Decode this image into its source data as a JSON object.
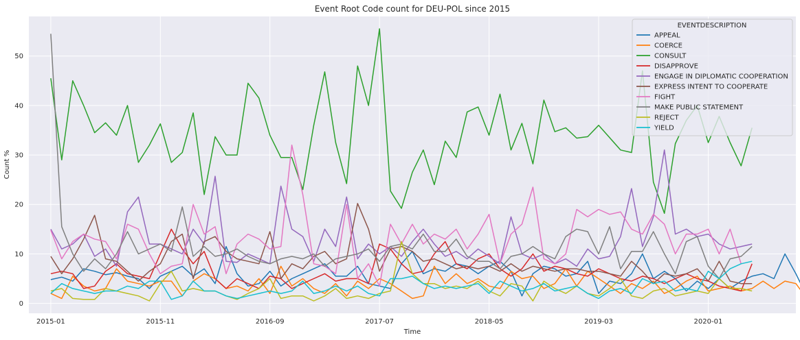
{
  "chart_data": {
    "type": "line",
    "title": "Event Root Code count for DEU-POL since 2015",
    "xlabel": "Time",
    "ylabel": "Count %",
    "x_start": "2015-01",
    "x_tick_labels": [
      "2015-01",
      "2015-11",
      "2016-09",
      "2017-07",
      "2018-05",
      "2019-03",
      "2020-01"
    ],
    "xlim": [
      "2014-11",
      "2020-09"
    ],
    "ylim": [
      -2,
      58
    ],
    "y_ticks": [
      0,
      10,
      20,
      30,
      40,
      50
    ],
    "grid": true,
    "legend_title": "EVENTDESCRIPTION",
    "legend_position": "top-right",
    "series": [
      {
        "name": "APPEAL",
        "color": "#1f77b4",
        "values": [
          4.8,
          5.3,
          4.5,
          7.0,
          6.5,
          5.8,
          6.2,
          5.5,
          5.0,
          3.0,
          5.5,
          6.5,
          7.5,
          5.5,
          7.0,
          4.0,
          11.5,
          6.0,
          3.5,
          4.0,
          6.5,
          3.5,
          5.0,
          6.0,
          7.0,
          8.0,
          5.5,
          5.5,
          7.5,
          4.0,
          3.5,
          3.0,
          8.0,
          10.5,
          6.0,
          7.0,
          6.5,
          8.0,
          7.5,
          6.0,
          7.5,
          8.5,
          6.5,
          1.5,
          6.0,
          7.5,
          7.0,
          5.5,
          6.0,
          8.5,
          2.0,
          4.5,
          4.0,
          6.0,
          10.0,
          5.0,
          6.5,
          5.0,
          2.5,
          4.5,
          3.0,
          5.0,
          3.0,
          4.5,
          5.5,
          6.0,
          5.0,
          10.0,
          6.0,
          1.5,
          7.0,
          3.0,
          5.5,
          8.0,
          8.5,
          14.5
        ]
      },
      {
        "name": "COERCE",
        "color": "#ff7f0e",
        "values": [
          2.0,
          1.0,
          5.5,
          3.5,
          2.5,
          3.0,
          7.0,
          4.5,
          4.0,
          3.5,
          4.5,
          4.5,
          1.5,
          4.5,
          6.0,
          5.0,
          3.0,
          3.5,
          2.5,
          5.0,
          2.0,
          7.5,
          3.5,
          5.0,
          3.0,
          2.0,
          4.0,
          1.5,
          4.5,
          3.0,
          5.0,
          4.0,
          2.5,
          1.0,
          1.5,
          7.5,
          4.0,
          6.0,
          4.0,
          5.0,
          3.5,
          3.0,
          6.5,
          5.0,
          5.5,
          3.0,
          4.0,
          7.0,
          3.5,
          6.5,
          5.0,
          3.5,
          2.0,
          4.0,
          3.0,
          4.5,
          2.0,
          3.0,
          4.5,
          5.5,
          2.5,
          3.0,
          3.5,
          2.5,
          3.0,
          4.5,
          3.0,
          4.5,
          4.0,
          1.0,
          6.0,
          11.5,
          8.5,
          10.5
        ]
      },
      {
        "name": "CONSULT",
        "color": "#2ca02c",
        "values": [
          45.5,
          29.0,
          45.0,
          40.0,
          34.5,
          36.5,
          34.0,
          40.0,
          28.5,
          32.0,
          36.3,
          28.5,
          30.5,
          38.5,
          22.0,
          33.7,
          30.0,
          30.0,
          44.5,
          41.5,
          34.0,
          29.5,
          29.5,
          23.0,
          36.0,
          46.8,
          32.5,
          24.2,
          48.0,
          40.0,
          55.5,
          22.7,
          19.2,
          26.5,
          31.0,
          24.0,
          32.8,
          29.5,
          38.7,
          39.7,
          34.0,
          42.3,
          31.0,
          36.4,
          28.2,
          41.1,
          34.7,
          35.5,
          33.4,
          33.7,
          36.0,
          33.5,
          31.0,
          30.5,
          47.0,
          24.5,
          18.2,
          32.3,
          37.0,
          40.0,
          32.5,
          37.8,
          32.5,
          27.8,
          35.5
        ]
      },
      {
        "name": "DISAPPROVE",
        "color": "#d62728",
        "values": [
          6.0,
          6.5,
          6.0,
          3.0,
          3.5,
          6.5,
          8.0,
          6.0,
          5.5,
          5.0,
          10.0,
          15.0,
          11.0,
          8.0,
          10.5,
          5.0,
          3.0,
          5.0,
          4.0,
          3.0,
          5.5,
          5.0,
          3.0,
          4.0,
          5.0,
          6.0,
          4.5,
          5.0,
          5.0,
          4.0,
          12.0,
          11.0,
          8.0,
          6.0,
          6.5,
          10.0,
          12.5,
          8.0,
          7.0,
          9.0,
          10.0,
          7.0,
          5.5,
          7.0,
          10.0,
          6.5,
          7.5,
          7.0,
          6.0,
          5.5,
          7.0,
          6.0,
          5.0,
          4.5,
          5.5,
          5.0,
          4.0,
          5.0,
          6.0,
          5.0,
          4.5,
          3.5,
          3.0,
          2.5,
          8.0
        ]
      },
      {
        "name": "ENGAGE IN DIPLOMATIC COOPERATION",
        "color": "#9467bd",
        "values": [
          15.0,
          11.0,
          12.0,
          14.0,
          9.5,
          11.0,
          7.5,
          18.5,
          21.5,
          12.0,
          12.0,
          11.0,
          10.0,
          15.0,
          12.0,
          25.7,
          8.5,
          8.3,
          10.0,
          9.0,
          8.0,
          23.7,
          15.0,
          13.5,
          8.5,
          15.0,
          11.5,
          21.5,
          9.0,
          12.0,
          10.0,
          11.5,
          9.5,
          12.5,
          15.0,
          12.0,
          9.5,
          10.5,
          9.0,
          11.0,
          9.5,
          8.0,
          17.5,
          10.0,
          9.0,
          10.0,
          8.0,
          9.0,
          7.5,
          11.0,
          9.0,
          9.5,
          13.5,
          23.2,
          11.5,
          17.5,
          31.0,
          14.0,
          15.0,
          13.5,
          14.0,
          12.0,
          11.0,
          11.5,
          12.0
        ]
      },
      {
        "name": "EXPRESS INTENT TO COOPERATE",
        "color": "#8c564b",
        "values": [
          9.5,
          6.0,
          9.0,
          13.0,
          17.8,
          9.0,
          8.5,
          6.5,
          4.5,
          6.5,
          8.0,
          12.5,
          14.0,
          5.0,
          12.5,
          13.5,
          10.5,
          9.0,
          8.5,
          8.0,
          14.5,
          5.0,
          8.0,
          7.0,
          9.5,
          10.5,
          8.0,
          9.0,
          20.2,
          15.0,
          6.5,
          11.0,
          11.5,
          10.5,
          8.5,
          9.0,
          8.0,
          7.0,
          7.5,
          7.0,
          7.5,
          6.5,
          8.0,
          6.5,
          7.5,
          7.0,
          6.5,
          7.0,
          7.0,
          6.5,
          6.5,
          6.0,
          5.5,
          8.5,
          6.5,
          4.0,
          6.0,
          5.5,
          6.0,
          7.0,
          4.5,
          8.5,
          4.5,
          4.0,
          4.0
        ]
      },
      {
        "name": "FIGHT",
        "color": "#e377c2",
        "values": [
          14.8,
          9.0,
          12.5,
          14.0,
          13.0,
          12.5,
          9.0,
          16.0,
          15.0,
          10.0,
          6.0,
          7.5,
          8.0,
          20.0,
          14.0,
          15.5,
          6.0,
          12.0,
          14.0,
          13.0,
          11.0,
          11.5,
          32.0,
          22.0,
          8.0,
          7.5,
          6.0,
          20.0,
          5.0,
          8.0,
          3.5,
          16.0,
          12.0,
          16.0,
          12.0,
          14.0,
          13.0,
          15.0,
          11.0,
          14.0,
          18.0,
          8.0,
          14.0,
          16.0,
          23.5,
          9.0,
          8.0,
          10.0,
          19.0,
          17.5,
          19.0,
          18.0,
          18.5,
          15.0,
          14.0,
          18.0,
          16.0,
          10.0,
          14.0,
          14.0,
          15.0,
          10.0,
          15.0,
          8.0
        ]
      },
      {
        "name": "MAKE PUBLIC STATEMENT",
        "color": "#7f7f7f",
        "values": [
          54.5,
          15.5,
          10.0,
          6.5,
          9.0,
          7.0,
          10.0,
          14.5,
          10.0,
          11.0,
          12.0,
          10.5,
          19.5,
          9.5,
          11.5,
          9.5,
          10.0,
          11.0,
          9.5,
          8.5,
          8.0,
          9.0,
          9.5,
          9.0,
          10.0,
          7.5,
          9.0,
          9.5,
          10.0,
          11.0,
          8.5,
          11.5,
          12.0,
          11.0,
          14.0,
          10.5,
          10.5,
          13.0,
          9.5,
          8.5,
          8.5,
          7.0,
          9.5,
          10.0,
          11.5,
          10.0,
          9.0,
          13.5,
          15.0,
          14.5,
          10.0,
          15.5,
          7.0,
          10.5,
          10.5,
          14.5,
          10.0,
          6.0,
          12.5,
          13.5,
          7.5,
          5.0,
          9.0,
          9.5,
          11.5
        ]
      },
      {
        "name": "REJECT",
        "color": "#bcbd22",
        "values": [
          2.5,
          3.0,
          1.0,
          0.8,
          0.8,
          3.0,
          2.5,
          2.0,
          1.5,
          0.5,
          4.0,
          6.5,
          2.5,
          3.0,
          2.5,
          2.5,
          1.5,
          0.8,
          2.0,
          3.0,
          5.0,
          1.0,
          1.5,
          1.5,
          0.5,
          1.5,
          3.0,
          1.0,
          1.5,
          1.0,
          2.0,
          2.5,
          12.5,
          6.0,
          4.0,
          4.0,
          3.0,
          3.5,
          3.0,
          4.5,
          2.5,
          1.5,
          4.0,
          3.5,
          0.5,
          4.5,
          3.0,
          2.0,
          3.5,
          2.0,
          1.5,
          3.0,
          5.0,
          1.5,
          1.0,
          2.5,
          3.0,
          1.5,
          2.0,
          2.5,
          2.0,
          5.0,
          3.0,
          3.0,
          2.5
        ]
      },
      {
        "name": "YIELD",
        "color": "#17becf",
        "values": [
          2.0,
          4.0,
          3.0,
          2.5,
          2.0,
          2.5,
          2.5,
          3.5,
          3.0,
          4.5,
          4.5,
          0.8,
          1.5,
          4.5,
          2.5,
          2.5,
          1.5,
          1.0,
          1.5,
          2.0,
          2.5,
          2.0,
          2.5,
          4.5,
          2.0,
          2.5,
          3.5,
          2.5,
          3.5,
          2.0,
          1.5,
          5.0,
          5.0,
          5.5,
          4.0,
          3.0,
          3.5,
          3.0,
          3.5,
          4.0,
          2.0,
          4.5,
          3.5,
          2.5,
          3.0,
          4.0,
          2.5,
          3.0,
          3.5,
          2.0,
          1.0,
          2.5,
          3.0,
          2.0,
          5.0,
          4.0,
          4.5,
          2.5,
          3.0,
          2.5,
          6.5,
          5.0,
          7.0,
          8.0,
          8.5
        ]
      }
    ]
  }
}
